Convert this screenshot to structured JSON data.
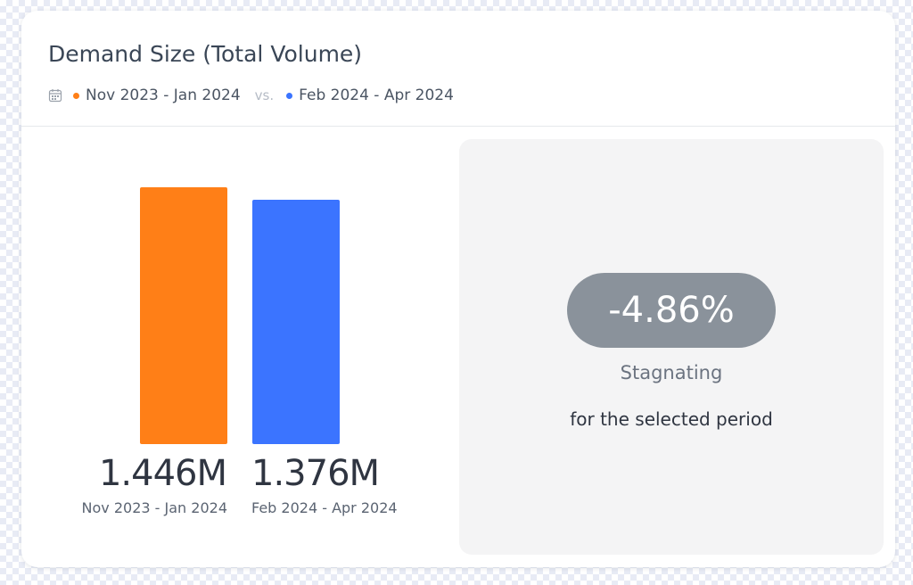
{
  "colors": {
    "period_a": "#ff7f17",
    "period_b": "#3b74ff",
    "pill": "#8a929b",
    "panel": "#f4f4f5"
  },
  "card": {
    "title": "Demand Size (Total Volume)",
    "period_a": "Nov 2023 - Jan 2024",
    "vs_label": "vs.",
    "period_b": "Feb 2024 - Apr 2024",
    "calendar_icon": "calendar-icon"
  },
  "summary": {
    "change": "-4.86%",
    "status": "Stagnating",
    "period_note": "for the selected period"
  },
  "chart_data": {
    "type": "bar",
    "categories": [
      "Nov 2023 - Jan 2024",
      "Feb 2024 - Apr 2024"
    ],
    "values": [
      1.446,
      1.376
    ],
    "value_labels": [
      "1.446M",
      "1.376M"
    ],
    "unit": "M",
    "ylim": [
      0,
      1.446
    ],
    "grid": false,
    "legend": "top-left"
  }
}
